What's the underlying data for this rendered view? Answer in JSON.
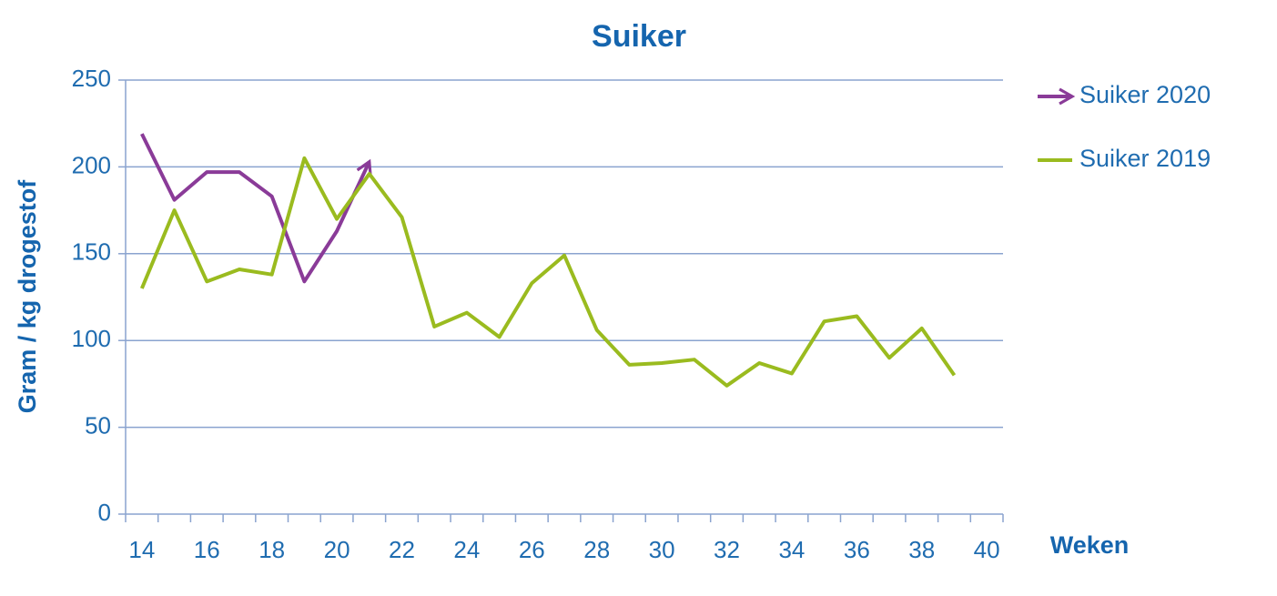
{
  "chart_data": {
    "type": "line",
    "title": "Suiker",
    "x_label": "Weken",
    "y_label": "Gram / kg drogestof",
    "categories": [
      "14",
      null,
      "16",
      null,
      "18",
      null,
      "20",
      null,
      "22",
      null,
      "24",
      null,
      "26",
      null,
      "28",
      null,
      "30",
      null,
      "32",
      null,
      "34",
      null,
      "36",
      null,
      "38",
      null,
      "40"
    ],
    "series": [
      {
        "name": "Suiker 2020",
        "color": "#8a3b98",
        "arrow": true,
        "values": [
          219,
          181,
          197,
          197,
          183,
          134,
          163,
          203,
          null,
          null,
          null,
          null,
          null,
          null,
          null,
          null,
          null,
          null,
          null,
          null,
          null,
          null,
          null,
          null,
          null,
          null,
          null
        ]
      },
      {
        "name": "Suiker 2019",
        "color": "#9abb1f",
        "arrow": false,
        "values": [
          130,
          175,
          134,
          141,
          138,
          205,
          170,
          196,
          171,
          108,
          116,
          102,
          133,
          149,
          106,
          86,
          87,
          89,
          74,
          87,
          81,
          111,
          114,
          90,
          107,
          80,
          null
        ]
      }
    ],
    "ylim": [
      0,
      250
    ],
    "yticks": [
      0,
      50,
      100,
      150,
      200,
      250
    ],
    "grid": true
  }
}
